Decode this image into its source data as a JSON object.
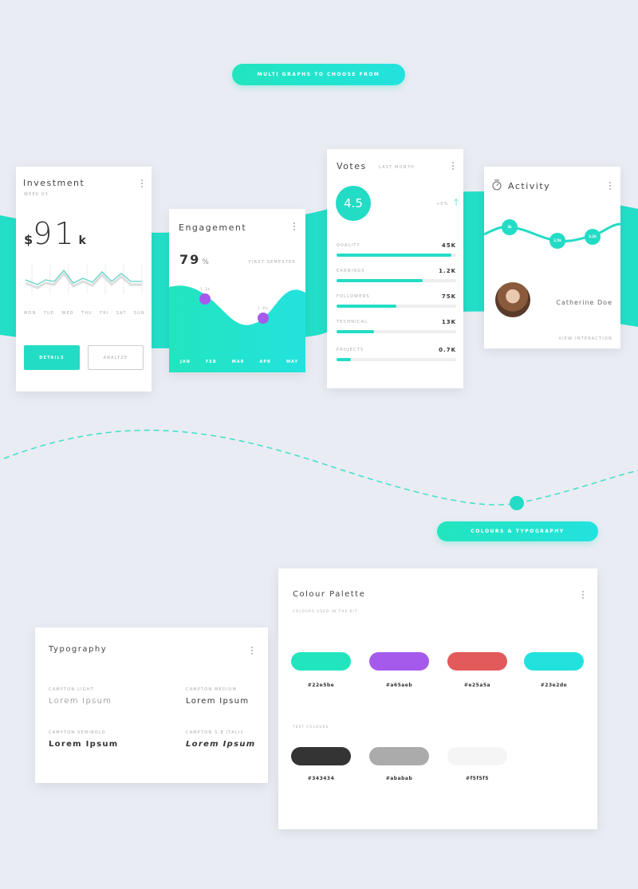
{
  "headers": {
    "top": "MULTI GRAPHS TO CHOOSE FROM",
    "bottom": "COLOURS & TYPOGRAPHY"
  },
  "investment": {
    "title": "Investment",
    "subtitle": "WEEK 03",
    "currency": "$",
    "amount": "91",
    "unit": "k",
    "days": [
      "MON",
      "TUE",
      "WED",
      "THU",
      "FRI",
      "SAT",
      "SUN"
    ],
    "details": "DETAILS",
    "analyze": "ANALYZE"
  },
  "engagement": {
    "title": "Engagement",
    "percent": "79",
    "percent_sign": "%",
    "period": "FIRST SEMESTER",
    "point1": "1.2k",
    "point2": "1.8k",
    "months": [
      "JAN",
      "FEB",
      "MAR",
      "APR",
      "MAY"
    ]
  },
  "votes": {
    "title": "Votes",
    "period": "LAST MONTH",
    "score": "4.5",
    "change": "+0%",
    "bars": [
      {
        "label": "QUALITY",
        "value": "45K",
        "pct": 96
      },
      {
        "label": "EARNINGS",
        "value": "1.2K",
        "pct": 72
      },
      {
        "label": "FOLLOWERS",
        "value": "75K",
        "pct": 50
      },
      {
        "label": "TECHNICAL",
        "value": "13K",
        "pct": 31
      },
      {
        "label": "PROJECTS",
        "value": "0.7K",
        "pct": 12
      }
    ]
  },
  "activity": {
    "title": "Activity",
    "points": [
      "3k",
      "2.5k",
      "3.2k"
    ],
    "name": "Catherine Doe",
    "link": "VIEW INTERACTION"
  },
  "typography": {
    "title": "Typography",
    "samples": [
      {
        "label": "CAMPTON LIGHT",
        "text": "Lorem Ipsum"
      },
      {
        "label": "CAMPTON MEDIUM",
        "text": "Lorem Ipsum"
      },
      {
        "label": "CAMPTON SEMIBOLD",
        "text": "Lorem Ipsum"
      },
      {
        "label": "CAMPTON S.B ITALIC",
        "text": "Lorem Ipsum"
      }
    ]
  },
  "palette": {
    "title": "Colour Palette",
    "subtitle": "COLOURS USED IN THE KIT",
    "text_colours_label": "TEXT COLOURS",
    "colours": [
      "#22e5be",
      "#a65aeb",
      "#e25a5a",
      "#23e2de"
    ],
    "text_colours": [
      "#343434",
      "#ababab",
      "#f5f5f5"
    ]
  }
}
